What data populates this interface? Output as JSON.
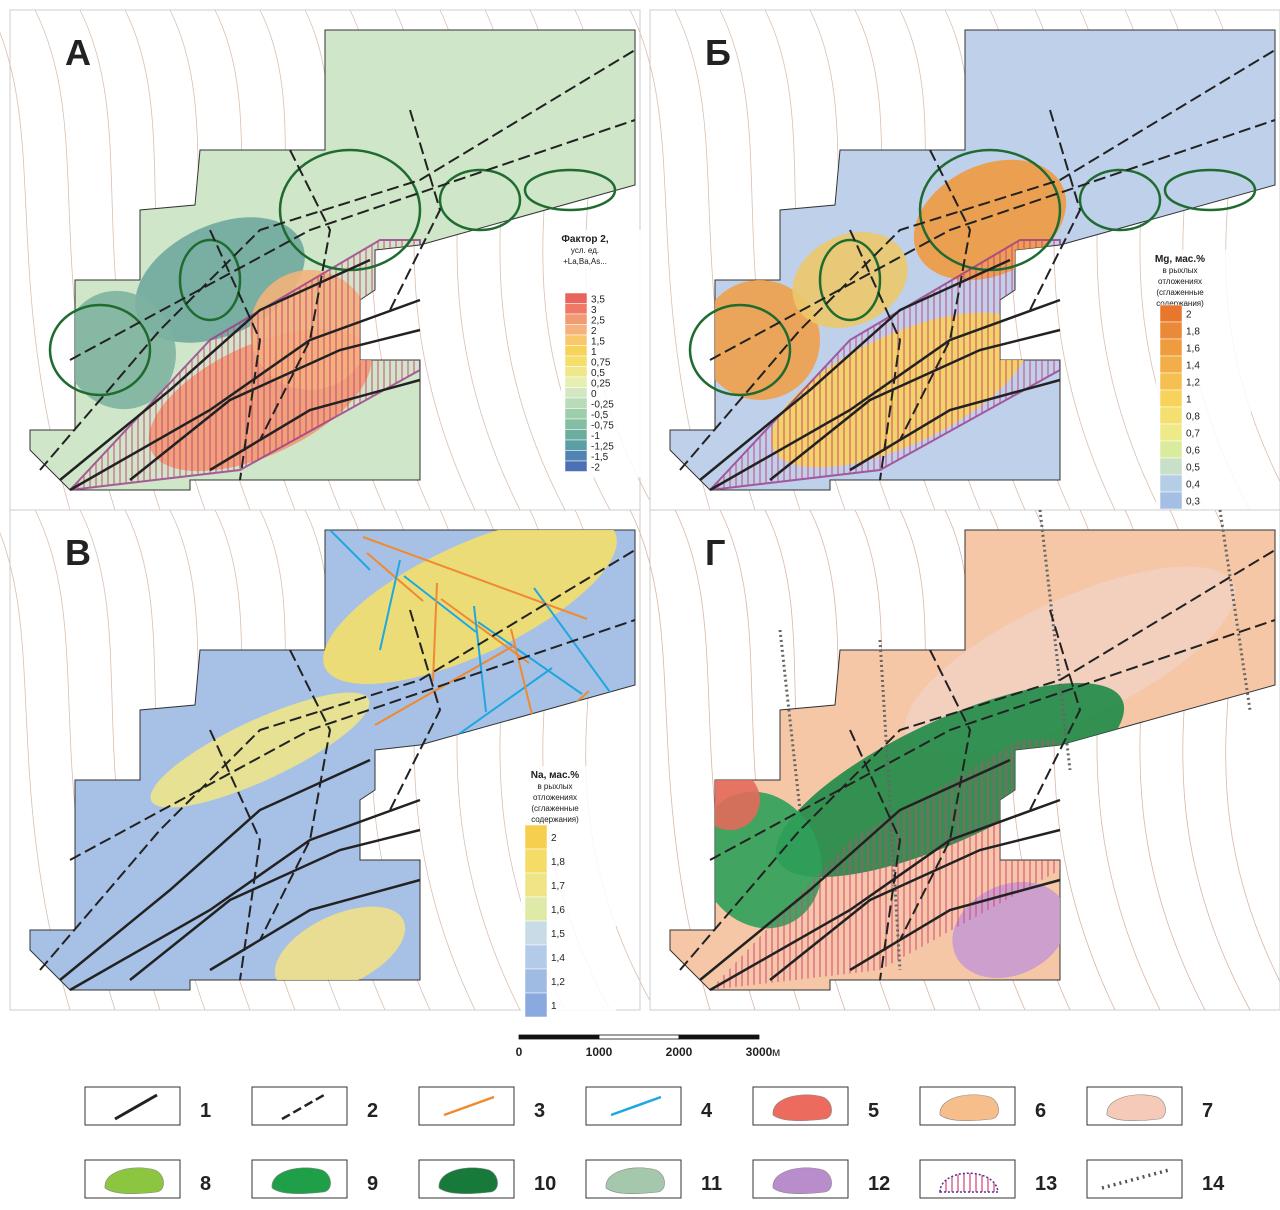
{
  "panels": [
    {
      "letter": "А",
      "legend": {
        "title": [
          "Фактор 2,",
          "усл. ед.",
          "+La,Ba,As..."
        ],
        "labels": [
          "3,5",
          "3",
          "2,5",
          "2",
          "1,5",
          "1",
          "0,75",
          "0,5",
          "0,25",
          "0",
          "-0,25",
          "-0,5",
          "-0,75",
          "-1",
          "-1,25",
          "-1,5",
          "-2"
        ],
        "colors": [
          "#e9645c",
          "#ee7a66",
          "#f29a72",
          "#f5b27c",
          "#f8c86a",
          "#f7d35a",
          "#f4df6a",
          "#eee88a",
          "#e4efb0",
          "#d3e8c2",
          "#b8dcb8",
          "#9dcdaa",
          "#83bea1",
          "#6cae9e",
          "#5a9fa4",
          "#5184b3",
          "#4c6fb5"
        ]
      }
    },
    {
      "letter": "Б",
      "legend": {
        "title": [
          "Mg, мас.%",
          "в рыхлых",
          "отложениях",
          "(сглаженные",
          "содержания)"
        ],
        "labels": [
          "2",
          "1,8",
          "1,6",
          "1,4",
          "1,2",
          "1",
          "0,8",
          "0,7",
          "0,6",
          "0,5",
          "0,4",
          "0,3"
        ],
        "colors": [
          "#e8772e",
          "#eb8a36",
          "#ef9c3e",
          "#f2ae48",
          "#f5c050",
          "#f7d35c",
          "#f4e070",
          "#eeea8a",
          "#d9ec9e",
          "#c8dfc8",
          "#b5cde6",
          "#a5bfe4"
        ]
      }
    },
    {
      "letter": "В",
      "legend": {
        "title": [
          "Na, мас.%",
          "в рыхлых",
          "отложениях",
          "(сглаженные",
          "содержания)"
        ],
        "labels": [
          "2",
          "1,8",
          "1,7",
          "1,6",
          "1,5",
          "1,4",
          "1,2",
          "1"
        ],
        "colors": [
          "#f6cf4e",
          "#f5dc66",
          "#f0e584",
          "#dfeaa8",
          "#c8dbe6",
          "#b3cbe8",
          "#9fbbe4",
          "#8aaadf"
        ]
      }
    },
    {
      "letter": "Г"
    }
  ],
  "scale": {
    "ticks": [
      "0",
      "1000",
      "2000",
      "3000"
    ],
    "unit": "м"
  },
  "legend_items": [
    "1",
    "2",
    "3",
    "4",
    "5",
    "6",
    "7",
    "8",
    "9",
    "10",
    "11",
    "12",
    "13",
    "14"
  ]
}
